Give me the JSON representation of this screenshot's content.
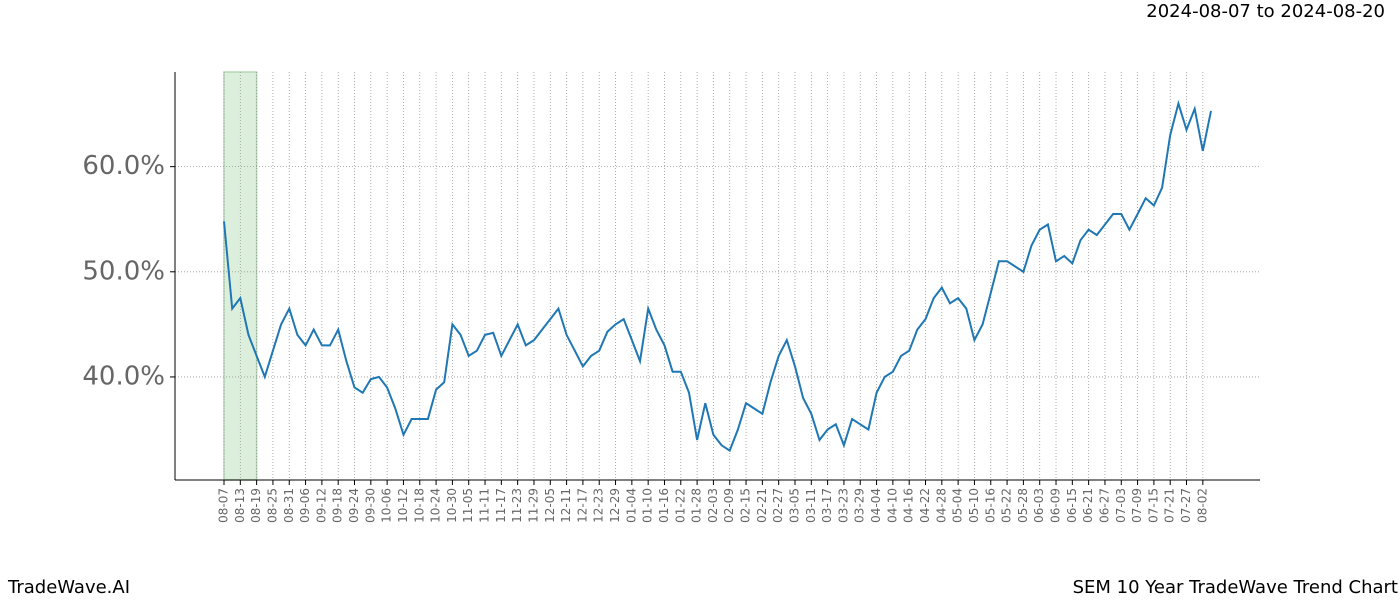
{
  "chart_data": {
    "type": "line",
    "title": "SEM 10 Year TradeWave Trend Chart",
    "subtitle": "2024-08-07 to 2024-08-20",
    "watermark": "TradeWave.AI",
    "categories": [
      "08-07",
      null,
      "08-13",
      null,
      "08-19",
      null,
      "08-25",
      null,
      "08-31",
      null,
      "09-06",
      null,
      "09-12",
      null,
      "09-18",
      null,
      "09-24",
      null,
      "09-30",
      null,
      "10-06",
      null,
      "10-12",
      null,
      "10-18",
      null,
      "10-24",
      null,
      "10-30",
      null,
      "11-05",
      null,
      "11-11",
      null,
      "11-17",
      null,
      "11-23",
      null,
      "11-29",
      null,
      "12-05",
      null,
      "12-11",
      null,
      "12-17",
      null,
      "12-23",
      null,
      "12-29",
      null,
      "01-04",
      null,
      "01-10",
      null,
      "01-16",
      null,
      "01-22",
      null,
      "01-28",
      null,
      "02-03",
      null,
      "02-09",
      null,
      "02-15",
      null,
      "02-21",
      null,
      "02-27",
      null,
      "03-05",
      null,
      "03-11",
      null,
      "03-17",
      null,
      "03-23",
      null,
      "03-29",
      null,
      "04-04",
      null,
      "04-10",
      null,
      "04-16",
      null,
      "04-22",
      null,
      "04-28",
      null,
      "05-04",
      null,
      "05-10",
      null,
      "05-16",
      null,
      "05-22",
      null,
      "05-28",
      null,
      "06-03",
      null,
      "06-09",
      null,
      "06-15",
      null,
      "06-21",
      null,
      "06-27",
      null,
      "07-03",
      null,
      "07-09",
      null,
      "07-15",
      null,
      "07-21",
      null,
      "07-27",
      null,
      "08-02",
      null
    ],
    "series": [
      {
        "color": "#1f77b4",
        "values": [
          54.8,
          46.5,
          47.5,
          44,
          42,
          40,
          42.5,
          45,
          46.5,
          44,
          43,
          44.5,
          43,
          43,
          44.5,
          41.5,
          39,
          38.5,
          39.8,
          40,
          39,
          37,
          34.5,
          36,
          36,
          36,
          38.8,
          39.5,
          45,
          44,
          42,
          42.5,
          44,
          44.2,
          42,
          43.5,
          45,
          43,
          43.5,
          44.5,
          45.5,
          46.5,
          44,
          42.5,
          41,
          42,
          42.5,
          44.3,
          45,
          45.5,
          43.5,
          41.5,
          46.5,
          44.5,
          43,
          40.5,
          40.5,
          38.5,
          34,
          37.5,
          34.5,
          33.5,
          33,
          35,
          37.5,
          37,
          36.5,
          39.5,
          42,
          43.5,
          41,
          38,
          36.5,
          34,
          35,
          35.5,
          33.5,
          36,
          35.5,
          35,
          38.5,
          40,
          40.5,
          42,
          42.5,
          44.5,
          45.5,
          47.5,
          48.5,
          47,
          47.5,
          46.5,
          43.5,
          45,
          48,
          51,
          51,
          50.5,
          50,
          52.5,
          54,
          54.5,
          51,
          51.5,
          50.8,
          53,
          54,
          53.5,
          54.5,
          55.5,
          55.5,
          54,
          55.5,
          57,
          56.3,
          58,
          63,
          66,
          63.5,
          65.5,
          61.5,
          65.3
        ]
      }
    ],
    "ylim": [
      30.2,
      69.0
    ],
    "yticks": [
      {
        "value": 40,
        "label": "40.0%"
      },
      {
        "value": 50,
        "label": "50.0%"
      },
      {
        "value": 60,
        "label": "60.0%"
      }
    ],
    "grid": true,
    "highlight": {
      "from": "08-07",
      "to": "08-19",
      "color": "#dcefdc"
    }
  }
}
